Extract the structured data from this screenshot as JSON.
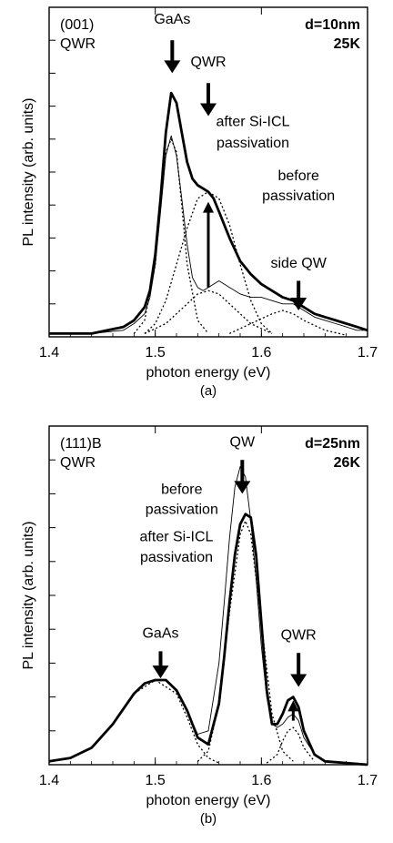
{
  "chart_data": [
    {
      "type": "line",
      "caption": "(a)",
      "xlabel": "photon energy (eV)",
      "ylabel": "PL intensity (arb. units)",
      "xlim": [
        1.4,
        1.7
      ],
      "ylim": [
        0,
        1.0
      ],
      "x_ticks": [
        "1.4",
        "1.5",
        "1.6",
        "1.7"
      ],
      "grid": false,
      "corner_label_left": [
        "(001)",
        "QWR"
      ],
      "corner_label_right": [
        "d=10nm",
        "25K"
      ],
      "annotations": [
        {
          "text": "GaAs",
          "x": 1.516,
          "y": 0.95,
          "arrow_from": 0.9,
          "arrow_to": 0.8
        },
        {
          "text": "QWR",
          "x": 1.55,
          "y": 0.82,
          "arrow_from": 0.77,
          "arrow_to": 0.67
        },
        {
          "text": "after Si-ICL",
          "x": 1.592,
          "y": 0.64
        },
        {
          "text": "passivation",
          "x": 1.592,
          "y": 0.575
        },
        {
          "text": "before",
          "x": 1.635,
          "y": 0.475
        },
        {
          "text": "passivation",
          "x": 1.635,
          "y": 0.415
        },
        {
          "text": "side QW",
          "x": 1.635,
          "y": 0.21,
          "arrow_from": 0.17,
          "arrow_to": 0.08
        }
      ],
      "series": [
        {
          "name": "after Si-ICL passivation",
          "style": "thick",
          "x": [
            1.4,
            1.44,
            1.47,
            1.48,
            1.49,
            1.495,
            1.5,
            1.505,
            1.51,
            1.515,
            1.52,
            1.525,
            1.53,
            1.535,
            1.54,
            1.545,
            1.55,
            1.555,
            1.56,
            1.57,
            1.58,
            1.59,
            1.6,
            1.61,
            1.62,
            1.63,
            1.64,
            1.65,
            1.66,
            1.67,
            1.68,
            1.69,
            1.7
          ],
          "y": [
            0.01,
            0.01,
            0.03,
            0.05,
            0.09,
            0.14,
            0.25,
            0.42,
            0.62,
            0.74,
            0.71,
            0.62,
            0.53,
            0.48,
            0.46,
            0.45,
            0.44,
            0.42,
            0.38,
            0.3,
            0.23,
            0.19,
            0.16,
            0.14,
            0.12,
            0.11,
            0.09,
            0.07,
            0.06,
            0.05,
            0.04,
            0.03,
            0.02
          ]
        },
        {
          "name": "before passivation",
          "style": "thin",
          "x": [
            1.4,
            1.44,
            1.47,
            1.48,
            1.49,
            1.495,
            1.5,
            1.505,
            1.51,
            1.515,
            1.52,
            1.525,
            1.53,
            1.535,
            1.54,
            1.545,
            1.55,
            1.555,
            1.56,
            1.57,
            1.58,
            1.59,
            1.6,
            1.61,
            1.62,
            1.63,
            1.64,
            1.65,
            1.66,
            1.67,
            1.68,
            1.69,
            1.7
          ],
          "y": [
            0.01,
            0.01,
            0.02,
            0.04,
            0.07,
            0.12,
            0.22,
            0.38,
            0.55,
            0.61,
            0.55,
            0.42,
            0.28,
            0.18,
            0.15,
            0.14,
            0.15,
            0.16,
            0.17,
            0.15,
            0.13,
            0.12,
            0.12,
            0.11,
            0.1,
            0.1,
            0.08,
            0.06,
            0.05,
            0.04,
            0.03,
            0.02,
            0.02
          ]
        },
        {
          "name": "fit GaAs (after)",
          "style": "dotted",
          "x": [
            1.48,
            1.49,
            1.5,
            1.505,
            1.51,
            1.515,
            1.52,
            1.525,
            1.53,
            1.54,
            1.55
          ],
          "y": [
            0.01,
            0.05,
            0.22,
            0.4,
            0.56,
            0.6,
            0.56,
            0.4,
            0.22,
            0.05,
            0.01
          ]
        },
        {
          "name": "fit QWR (after)",
          "style": "dotted",
          "x": [
            1.49,
            1.5,
            1.51,
            1.52,
            1.53,
            1.54,
            1.55,
            1.56,
            1.57,
            1.58,
            1.59,
            1.6,
            1.61
          ],
          "y": [
            0.01,
            0.04,
            0.11,
            0.22,
            0.33,
            0.42,
            0.44,
            0.42,
            0.34,
            0.22,
            0.11,
            0.04,
            0.01
          ]
        },
        {
          "name": "fit QWR (before)",
          "style": "dotted",
          "x": [
            1.49,
            1.51,
            1.53,
            1.54,
            1.55,
            1.56,
            1.57,
            1.59,
            1.61
          ],
          "y": [
            0.01,
            0.04,
            0.1,
            0.13,
            0.14,
            0.13,
            0.1,
            0.04,
            0.01
          ]
        },
        {
          "name": "fit side QW",
          "style": "dotted",
          "x": [
            1.57,
            1.59,
            1.61,
            1.62,
            1.63,
            1.64,
            1.66,
            1.68
          ],
          "y": [
            0.01,
            0.04,
            0.07,
            0.08,
            0.07,
            0.05,
            0.02,
            0.005
          ]
        }
      ],
      "vertical_arrow": {
        "x": 1.55,
        "y_from": 0.15,
        "y_to": 0.41
      }
    },
    {
      "type": "line",
      "caption": "(b)",
      "xlabel": "photon energy (eV)",
      "ylabel": "PL intensity (arb. units)",
      "xlim": [
        1.4,
        1.7
      ],
      "ylim": [
        0,
        1.0
      ],
      "x_ticks": [
        "1.4",
        "1.5",
        "1.6",
        "1.7"
      ],
      "grid": false,
      "corner_label_left": [
        "(111)B",
        "QWR"
      ],
      "corner_label_right": [
        "d=25nm",
        "26K"
      ],
      "annotations": [
        {
          "text": "QW",
          "x": 1.582,
          "y": 0.94,
          "arrow_from": 0.9,
          "arrow_to": 0.8
        },
        {
          "text": "before",
          "x": 1.525,
          "y": 0.8
        },
        {
          "text": "passivation",
          "x": 1.525,
          "y": 0.74
        },
        {
          "text": "after Si-ICL",
          "x": 1.52,
          "y": 0.66
        },
        {
          "text": "passivation",
          "x": 1.52,
          "y": 0.6
        },
        {
          "text": "GaAs",
          "x": 1.505,
          "y": 0.375,
          "arrow_from": 0.335,
          "arrow_to": 0.255
        },
        {
          "text": "QWR",
          "x": 1.635,
          "y": 0.37,
          "arrow_from": 0.33,
          "arrow_to": 0.23
        }
      ],
      "series": [
        {
          "name": "after Si-ICL passivation",
          "style": "thick",
          "x": [
            1.4,
            1.42,
            1.44,
            1.46,
            1.48,
            1.49,
            1.5,
            1.51,
            1.52,
            1.53,
            1.54,
            1.55,
            1.56,
            1.565,
            1.57,
            1.575,
            1.58,
            1.585,
            1.59,
            1.595,
            1.6,
            1.605,
            1.61,
            1.615,
            1.62,
            1.625,
            1.63,
            1.635,
            1.64,
            1.65,
            1.66,
            1.68,
            1.7
          ],
          "y": [
            0.01,
            0.02,
            0.05,
            0.12,
            0.21,
            0.24,
            0.25,
            0.25,
            0.22,
            0.16,
            0.08,
            0.06,
            0.18,
            0.32,
            0.48,
            0.62,
            0.71,
            0.74,
            0.73,
            0.62,
            0.42,
            0.22,
            0.12,
            0.12,
            0.15,
            0.19,
            0.2,
            0.17,
            0.1,
            0.03,
            0.01,
            0.005,
            0.0
          ]
        },
        {
          "name": "before passivation",
          "style": "thin",
          "x": [
            1.4,
            1.42,
            1.44,
            1.46,
            1.48,
            1.49,
            1.5,
            1.51,
            1.52,
            1.53,
            1.54,
            1.55,
            1.56,
            1.565,
            1.57,
            1.575,
            1.58,
            1.585,
            1.59,
            1.595,
            1.6,
            1.605,
            1.61,
            1.615,
            1.62,
            1.625,
            1.63,
            1.635,
            1.64,
            1.65,
            1.66,
            1.68,
            1.7
          ],
          "y": [
            0.01,
            0.02,
            0.05,
            0.12,
            0.21,
            0.24,
            0.25,
            0.25,
            0.22,
            0.16,
            0.09,
            0.1,
            0.3,
            0.48,
            0.67,
            0.82,
            0.88,
            0.85,
            0.72,
            0.55,
            0.35,
            0.2,
            0.12,
            0.11,
            0.12,
            0.14,
            0.15,
            0.13,
            0.08,
            0.03,
            0.01,
            0.005,
            0.0
          ]
        },
        {
          "name": "fit QW",
          "style": "dotted",
          "x": [
            1.54,
            1.55,
            1.56,
            1.57,
            1.58,
            1.585,
            1.59,
            1.6,
            1.61,
            1.62,
            1.63
          ],
          "y": [
            0.01,
            0.04,
            0.18,
            0.45,
            0.68,
            0.72,
            0.68,
            0.42,
            0.15,
            0.04,
            0.01
          ]
        },
        {
          "name": "fit QWR",
          "style": "dotted",
          "x": [
            1.605,
            1.615,
            1.62,
            1.625,
            1.63,
            1.635,
            1.64,
            1.65
          ],
          "y": [
            0.005,
            0.03,
            0.07,
            0.1,
            0.11,
            0.09,
            0.05,
            0.01
          ]
        },
        {
          "name": "fit GaAs",
          "style": "dotted",
          "x": [
            1.4,
            1.42,
            1.44,
            1.46,
            1.48,
            1.5,
            1.52,
            1.53,
            1.54,
            1.55,
            1.56
          ],
          "y": [
            0.01,
            0.02,
            0.05,
            0.12,
            0.21,
            0.25,
            0.21,
            0.14,
            0.06,
            0.02,
            0.005
          ]
        }
      ],
      "vertical_arrow": {
        "x": 1.63,
        "y_from": 0.13,
        "y_to": 0.19
      }
    }
  ]
}
